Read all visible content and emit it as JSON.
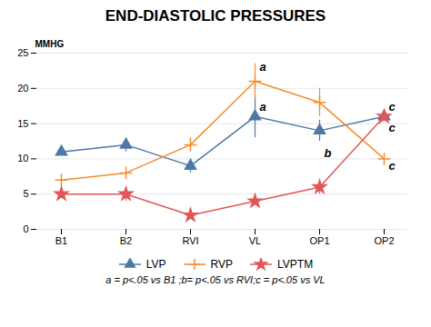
{
  "chart_data": {
    "type": "line",
    "title": "END-DIASTOLIC PRESSURES",
    "ylabel": "MMHG",
    "categories": [
      "B1",
      "B2",
      "RVI",
      "VL",
      "OP1",
      "OP2"
    ],
    "ylim": [
      0,
      25
    ],
    "yticks": [
      0,
      5,
      10,
      15,
      20,
      25
    ],
    "grid": true,
    "legend": "bottom",
    "series": [
      {
        "name": "LVP",
        "marker": "triangle",
        "values": [
          11,
          12,
          9,
          16,
          14,
          16
        ],
        "error_minus": [
          0,
          1,
          1,
          3,
          1.5,
          0
        ],
        "error_plus": [
          0,
          1,
          1,
          3,
          1.5,
          0
        ]
      },
      {
        "name": "RVP",
        "marker": "plus",
        "values": [
          7,
          8,
          12,
          21,
          18,
          10
        ],
        "error_minus": [
          0,
          0,
          1,
          2.5,
          2,
          0
        ],
        "error_plus": [
          0,
          0,
          1,
          2.5,
          2,
          0
        ]
      },
      {
        "name": "LVPTM",
        "marker": "star",
        "values": [
          5,
          5,
          2,
          4,
          6,
          16
        ],
        "error_minus": [
          0,
          1,
          0.5,
          0.5,
          1,
          0
        ],
        "error_plus": [
          0,
          1,
          0.5,
          0.5,
          1,
          0
        ]
      }
    ],
    "annotations": [
      {
        "text": "a",
        "x": "VL",
        "y": 22.5
      },
      {
        "text": "a",
        "x": "VL",
        "y": 16.8
      },
      {
        "text": "b",
        "x": "OP1",
        "y": 10.3
      },
      {
        "text": "c",
        "x": "OP2",
        "y": 16.8
      },
      {
        "text": "c",
        "x": "OP2",
        "y": 13.8
      },
      {
        "text": "c",
        "x": "OP2",
        "y": 8.5
      }
    ],
    "footnote": "a = p<.05 vs B1 ;b= p<.05 vs RVI;c = p<.05 vs VL"
  }
}
